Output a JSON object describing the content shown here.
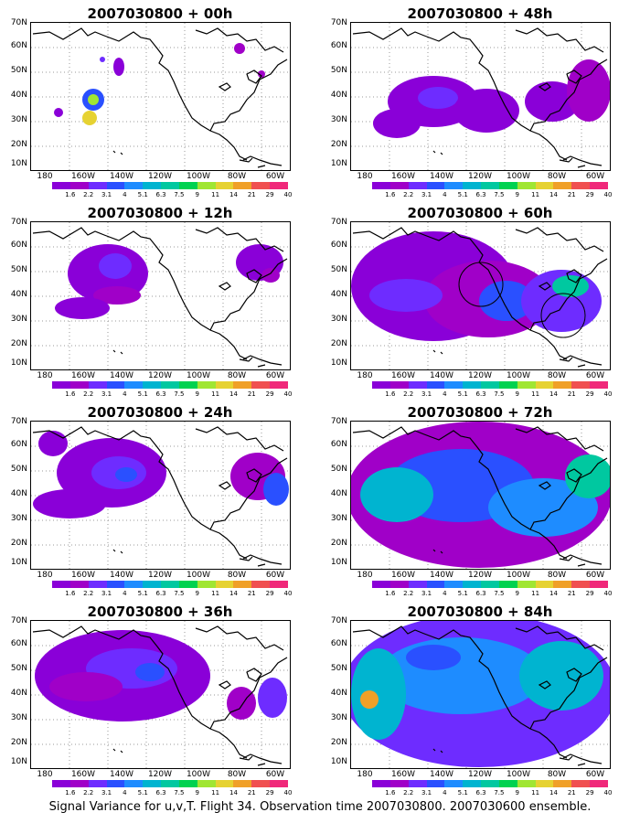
{
  "panels": [
    {
      "title": "2007030800 + 00h",
      "level": 0
    },
    {
      "title": "2007030800 + 48h",
      "level": 3
    },
    {
      "title": "2007030800 + 12h",
      "level": 1
    },
    {
      "title": "2007030800 + 60h",
      "level": 4
    },
    {
      "title": "2007030800 + 24h",
      "level": 2
    },
    {
      "title": "2007030800 + 72h",
      "level": 5
    },
    {
      "title": "2007030800 + 36h",
      "level": 2
    },
    {
      "title": "2007030800 + 84h",
      "level": 6
    }
  ],
  "y_labels": [
    "70N",
    "60N",
    "50N",
    "40N",
    "30N",
    "20N",
    "10N"
  ],
  "x_labels": [
    "180",
    "160W",
    "140W",
    "120W",
    "100W",
    "80W",
    "60W"
  ],
  "colorbar": {
    "labels": [
      "1.6",
      "2.2",
      "3.1",
      "4",
      "5.1",
      "6.3",
      "7.5",
      "9",
      "11",
      "14",
      "21",
      "29",
      "40"
    ],
    "colors": [
      "#8a00d8",
      "#a000c8",
      "#6e2cff",
      "#2a50ff",
      "#1e8cff",
      "#00b4d0",
      "#00c8a0",
      "#00d250",
      "#a0e632",
      "#e6d232",
      "#f0a028",
      "#f05050",
      "#f0287a"
    ]
  },
  "footer": "Signal Variance for u,v,T. Flight 34. Observation time 2007030800. 2007030600 ensemble."
}
